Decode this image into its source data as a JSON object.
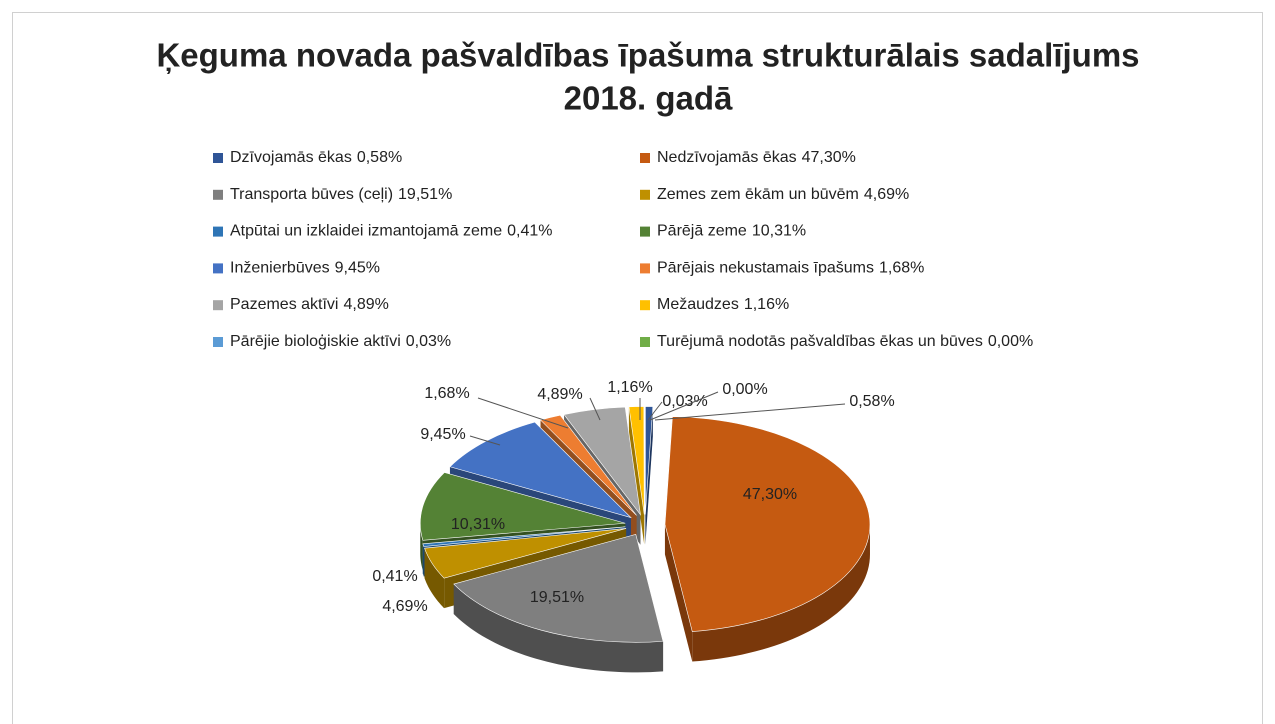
{
  "chart_data": {
    "type": "pie",
    "title": [
      "Ķeguma novada pašvaldības īpašuma strukturālais sadalījums",
      "2018. gadā"
    ],
    "categories": [
      "Dzīvojamās ēkas",
      "Nedzīvojamās ēkas",
      "Transporta būves (ceļi)",
      "Zemes zem ēkām un būvēm",
      "Atpūtai un izklaidei izmantojamā zeme",
      "Pārējā zeme",
      "Inženierbūves",
      "Pārējais nekustamais īpašums",
      "Pazemes aktīvi",
      "Mežaudzes",
      "Pārējie bioloģiskie aktīvi",
      "Turējumā nodotās pašvaldības ēkas un būves"
    ],
    "values": [
      0.58,
      47.3,
      19.51,
      4.69,
      0.41,
      10.31,
      9.45,
      1.68,
      4.89,
      1.16,
      0.03,
      0.0
    ],
    "value_labels": [
      "0,58%",
      "47,30%",
      "19,51%",
      "4,69%",
      "0,41%",
      "10,31%",
      "9,45%",
      "1,68%",
      "4,89%",
      "1,16%",
      "0,03%",
      "0,00%"
    ],
    "colors": [
      "#2f5597",
      "#c55a11",
      "#7f7f7f",
      "#bf9000",
      "#2e75b6",
      "#548235",
      "#4472c4",
      "#ed7d31",
      "#a5a5a5",
      "#ffc000",
      "#5b9bd5",
      "#70ad47"
    ],
    "legend": "top"
  }
}
